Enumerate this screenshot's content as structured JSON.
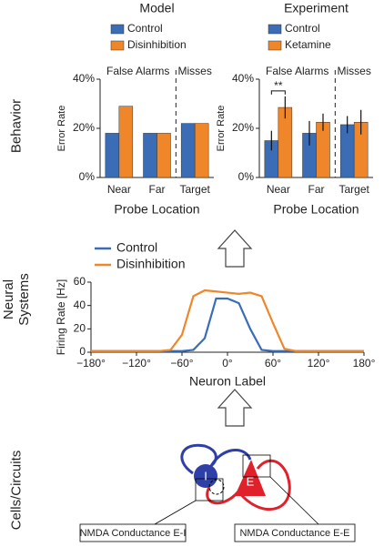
{
  "row_labels": [
    "Behavior",
    "Neural\nSystems",
    "Cells/Circuits"
  ],
  "chart_data": [
    {
      "type": "bar",
      "title": "Model",
      "ylabel": "Error Rate",
      "xlabel": "Probe Location",
      "categories": [
        "Near",
        "Far",
        "Target"
      ],
      "series": [
        {
          "name": "Control",
          "color": "#3a6db5",
          "values": [
            18,
            18,
            22
          ]
        },
        {
          "name": "Disinhibition",
          "color": "#f0862a",
          "values": [
            29,
            18,
            22
          ]
        }
      ],
      "ylim": [
        0,
        40
      ],
      "yticks": [
        {
          "value": 0,
          "label": "0%"
        },
        {
          "value": 20,
          "label": "20%"
        },
        {
          "value": 40,
          "label": "40%"
        }
      ],
      "annotations": [
        "False Alarms",
        "Misses"
      ]
    },
    {
      "type": "bar",
      "title": "Experiment",
      "ylabel": "Error Rate",
      "xlabel": "Probe Location",
      "categories": [
        "Near",
        "Far",
        "Target"
      ],
      "series": [
        {
          "name": "Control",
          "color": "#3a6db5",
          "values": [
            15,
            18,
            21.5
          ],
          "errors": [
            4,
            5,
            3.5
          ]
        },
        {
          "name": "Ketamine",
          "color": "#f0862a",
          "values": [
            28.5,
            22.5,
            22.5
          ],
          "errors": [
            4.5,
            3.5,
            5
          ]
        }
      ],
      "ylim": [
        0,
        40
      ],
      "yticks": [
        {
          "value": 0,
          "label": "0%"
        },
        {
          "value": 20,
          "label": "20%"
        },
        {
          "value": 40,
          "label": "40%"
        }
      ],
      "annotations": [
        "False Alarms",
        "Misses",
        "**"
      ]
    },
    {
      "type": "line",
      "ylabel": "Firing Rate [Hz]",
      "xlabel": "Neuron Label",
      "x": [
        -180,
        -165,
        -150,
        -135,
        -120,
        -105,
        -90,
        -75,
        -60,
        -45,
        -30,
        -15,
        0,
        15,
        30,
        45,
        60,
        75,
        90,
        105,
        120,
        135,
        150,
        165,
        180
      ],
      "series": [
        {
          "name": "Control",
          "color": "#3a6db5",
          "values": [
            1,
            1,
            1,
            1,
            1,
            1,
            1,
            1,
            1,
            2,
            12,
            46,
            46,
            42,
            20,
            2,
            1,
            1,
            1,
            1,
            1,
            1,
            1,
            1,
            1
          ]
        },
        {
          "name": "Disinhibition",
          "color": "#f0862a",
          "values": [
            1,
            1,
            1,
            1,
            1,
            1,
            1,
            2,
            15,
            48,
            53,
            52,
            51,
            50,
            51,
            48,
            25,
            3,
            1,
            1,
            1,
            1,
            1,
            1,
            1
          ]
        }
      ],
      "xlim": [
        -180,
        180
      ],
      "ylim": [
        0,
        60
      ],
      "xticks": [
        {
          "value": -180,
          "label": "−180°"
        },
        {
          "value": -120,
          "label": "−120°"
        },
        {
          "value": -60,
          "label": "−60°"
        },
        {
          "value": 0,
          "label": "0°"
        },
        {
          "value": 60,
          "label": "60°"
        },
        {
          "value": 120,
          "label": "120°"
        },
        {
          "value": 180,
          "label": "180°"
        }
      ],
      "yticks": [
        0,
        20,
        40,
        60
      ]
    }
  ],
  "diagram": {
    "nodes": [
      {
        "label": "I"
      },
      {
        "label": "E"
      }
    ],
    "callouts": [
      "NMDA Conductance E-I",
      "NMDA Conductance E-E"
    ]
  }
}
